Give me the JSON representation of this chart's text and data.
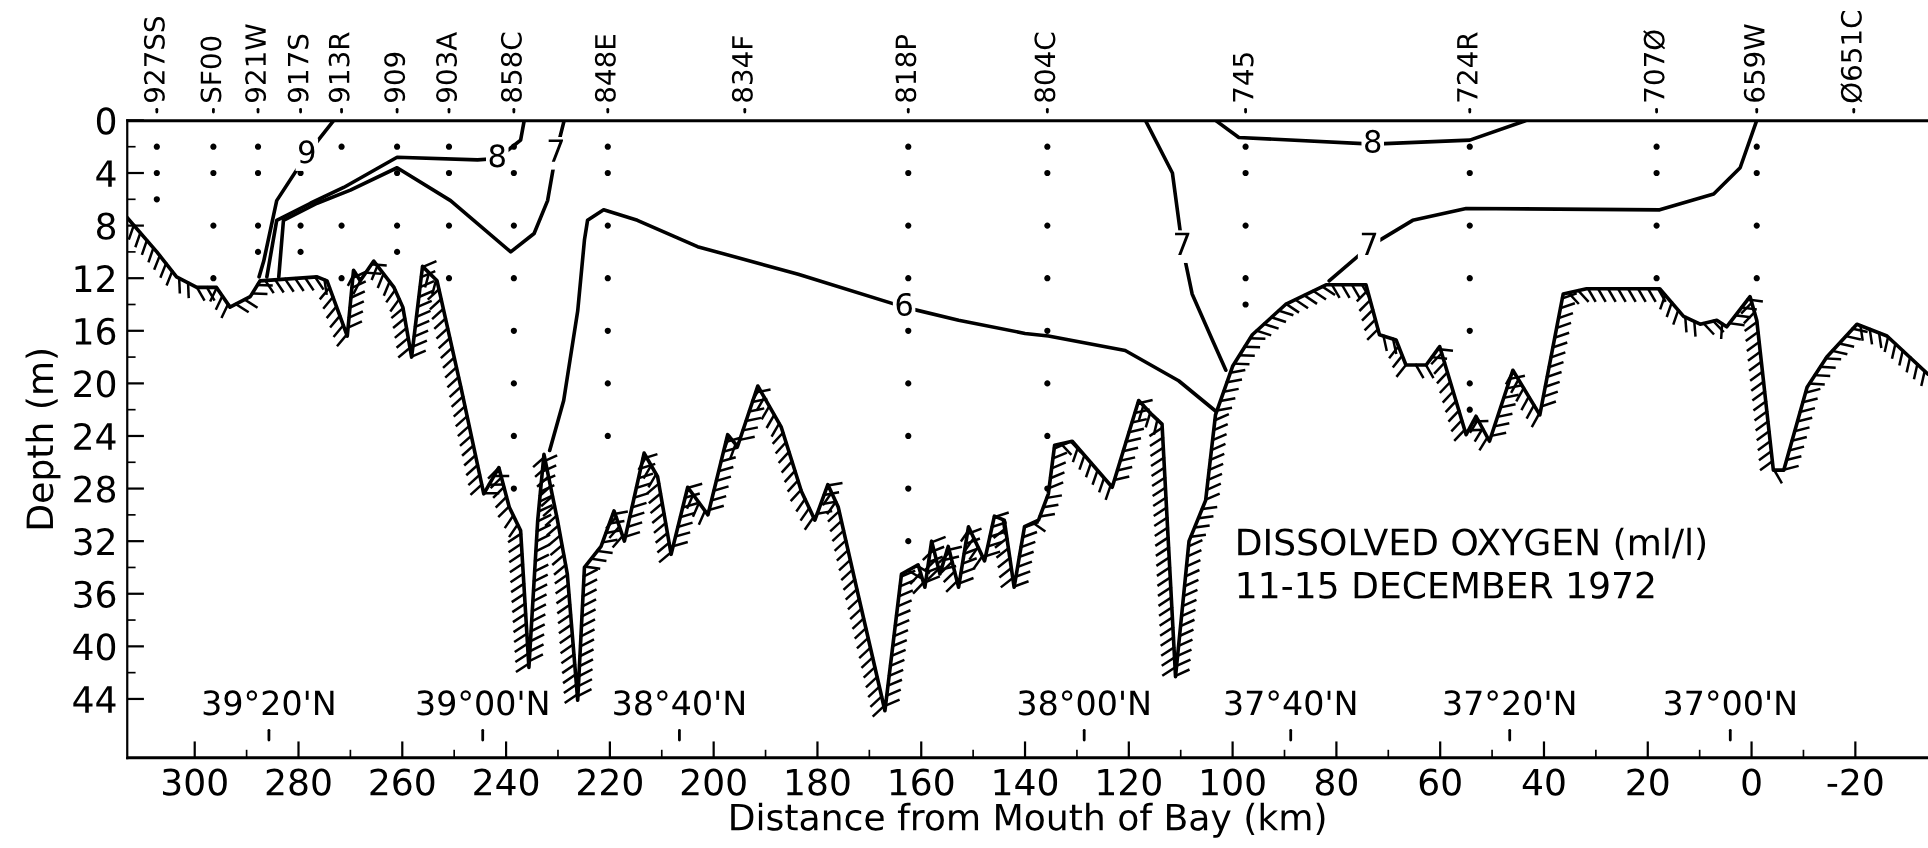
{
  "chart_data": {
    "type": "line",
    "xlabel": "Distance from Mouth of Bay (km)",
    "ylabel": "Depth (m)",
    "xlim": [
      313,
      -34
    ],
    "ylim": [
      48.5,
      0
    ],
    "xticks": [
      300,
      280,
      260,
      240,
      220,
      200,
      180,
      160,
      140,
      120,
      100,
      80,
      60,
      40,
      20,
      0,
      {
        "value": -20,
        "label": "-20"
      }
    ],
    "yticks": [
      0,
      4,
      8,
      12,
      16,
      20,
      24,
      28,
      32,
      36,
      40,
      44
    ],
    "ref_lines": [
      {
        "axis": "y",
        "value": 0,
        "color": "#000000"
      },
      {
        "axis": "y",
        "value": 48.5,
        "color": "#000000"
      }
    ],
    "series": [
      {
        "color": "#000000",
        "x": [
          313,
          307.3,
          303.5,
          299.6,
          295.8,
          293.2,
          289.3,
          287.4,
          276.4,
          274.5,
          270.6,
          269.4,
          268.1,
          265.5,
          261.6,
          259.9,
          258.2,
          256.1,
          253.3,
          248.7,
          244.3,
          241.4,
          239.4,
          237.2,
          235.6,
          233.9,
          232.7,
          230.1,
          228.2,
          226.2,
          224.9,
          221.7,
          219.2,
          217.2,
          213.4,
          210.8,
          208.2,
          205,
          201.1,
          197.3,
          195.4,
          191.5,
          187,
          183.1,
          180.5,
          178,
          176,
          172.2,
          167,
          163.8,
          160.6,
          159.3,
          158,
          156.4,
          154.8,
          152.8,
          150.9,
          147.8,
          145.9,
          144,
          142.1,
          140.1,
          137.4,
          135.5,
          134.3,
          130.9,
          123.2,
          118.1,
          115.5,
          113.6,
          111,
          108.4,
          105.2,
          103.3,
          100,
          96.2,
          89.8,
          82,
          74.3,
          71.7,
          68.5,
          66.6,
          62.7,
          60.1,
          55,
          53.1,
          50.5,
          46,
          40.8,
          36.3,
          31.8,
          17.7,
          13.1,
          9.9,
          6.7,
          4.8,
          0.3,
          -1,
          -4.2,
          -6.2,
          -10.7,
          -14.5,
          -20.3,
          -26.1,
          -34
        ],
        "values": [
          7.4,
          10,
          11.9,
          12.7,
          12.7,
          14.2,
          13.4,
          12.2,
          11.9,
          12.2,
          16.4,
          11.4,
          12.2,
          10.7,
          12.7,
          14.2,
          18,
          11.1,
          12.2,
          20.3,
          28.4,
          26.4,
          29.4,
          31.2,
          41.6,
          30.4,
          25.4,
          30.4,
          34.5,
          44.1,
          34,
          32.4,
          29.7,
          32,
          25.3,
          27.1,
          33,
          27.9,
          30,
          23.9,
          24.8,
          20.2,
          23.3,
          28.2,
          30.4,
          27.7,
          29.4,
          36,
          44.9,
          34.5,
          33.8,
          35.5,
          32,
          34.5,
          32.4,
          35.5,
          30.9,
          33.5,
          30.1,
          30.4,
          35.5,
          30.9,
          30.4,
          28.4,
          24.7,
          24.4,
          27.9,
          21.3,
          22.4,
          23.1,
          42.3,
          32,
          28.9,
          22.4,
          18.7,
          16.3,
          14,
          12.5,
          12.5,
          16.3,
          16.7,
          18.6,
          18.6,
          17.2,
          23.9,
          22.5,
          24.4,
          19,
          22.4,
          13.2,
          12.8,
          12.8,
          14.9,
          15.5,
          15.2,
          15.7,
          13.4,
          15.2,
          26.6,
          26.6,
          20.3,
          18,
          15.5,
          16.4,
          19.3
        ]
      },
      {
        "color": "#000000",
        "x": [
          273.2,
          278.4,
          284.2,
          286.7,
          287.6
        ],
        "values": [
          0,
          2.6,
          6.1,
          10.7,
          11.9
        ]
      },
      {
        "color": "#000000",
        "x": [
          286.1,
          284.2,
          277.7,
          271.3,
          261,
          245.5,
          241.7,
          237.2,
          236.5
        ],
        "values": [
          11.9,
          7.6,
          6.3,
          5.1,
          2.8,
          3,
          2.9,
          1.5,
          0
        ]
      },
      {
        "color": "#000000",
        "x": [
          283.8,
          282.9,
          276.4,
          270,
          261,
          250.7,
          239.1,
          234.6,
          232,
          230.4,
          228.8
        ],
        "values": [
          11.9,
          7.6,
          6.3,
          5.3,
          3.6,
          6.1,
          10,
          8.6,
          6.1,
          2.5,
          0
        ]
      },
      {
        "color": "#000000",
        "x": [
          231.6,
          228.9,
          226.2,
          224.9,
          224.3,
          221.2,
          214.7,
          203.1,
          183.7,
          163.3,
          152.8,
          140,
          135.5,
          120.7,
          110.4,
          103.3
        ],
        "values": [
          25.1,
          21.3,
          14.5,
          9.1,
          7.6,
          6.8,
          7.6,
          9.6,
          11.7,
          14.2,
          15.2,
          16.2,
          16.4,
          17.5,
          19.8,
          22.1
        ]
      },
      {
        "color": "#000000",
        "x": [
          116.8,
          111.6,
          109.7,
          107.8,
          103.9,
          101.3
        ],
        "values": [
          0,
          4,
          9.6,
          13.2,
          16.7,
          19
        ]
      },
      {
        "color": "#000000",
        "x": [
          103.3,
          98.8,
          73,
          54.3,
          43.4
        ],
        "values": [
          0,
          1.3,
          1.8,
          1.5,
          0
        ]
      },
      {
        "color": "#000000",
        "x": [
          81.4,
          73.7,
          65.3,
          55,
          17.7,
          7.3,
          2.2,
          -1
        ],
        "values": [
          12.2,
          9.6,
          7.6,
          6.7,
          6.8,
          5.6,
          3.6,
          0
        ]
      },
      {
        "type": "scatter",
        "color": "#000000",
        "marker": "circle",
        "x": [
          307.3,
          307.3,
          307.3,
          296.4,
          296.4,
          296.4,
          296.4,
          287.8,
          287.8,
          287.8,
          287.8,
          279.6,
          279.6,
          279.6,
          271.7,
          271.7,
          271.7,
          261,
          261,
          261,
          261,
          251,
          251,
          251,
          251,
          238.5,
          238.5,
          238.5,
          238.5,
          238.5,
          238.5,
          238.5,
          238.5,
          220.4,
          220.4,
          220.4,
          220.4,
          220.4,
          220.4,
          220.4,
          162.5,
          162.5,
          162.5,
          162.5,
          162.5,
          162.5,
          162.5,
          162.5,
          162.5,
          135.7,
          135.7,
          135.7,
          135.7,
          135.7,
          135.7,
          135.7,
          135.7,
          97.5,
          97.5,
          97.5,
          97.5,
          97.5,
          54.3,
          54.3,
          54.3,
          54.3,
          54.3,
          54.3,
          54.3,
          18.3,
          18.3,
          18.3,
          18.3,
          -1,
          -1,
          -1,
          -1
        ],
        "values": [
          2,
          4,
          6,
          2,
          4,
          8,
          12,
          2,
          4,
          8,
          10,
          4,
          8,
          10,
          2,
          8,
          12,
          2,
          4,
          8,
          10,
          2,
          4,
          8,
          12,
          2,
          4,
          8,
          12,
          16,
          20,
          24,
          28,
          2,
          4,
          8,
          12,
          16,
          20,
          24,
          2,
          4,
          8,
          12,
          16,
          20,
          24,
          28,
          32,
          2,
          4,
          8,
          12,
          16,
          20,
          24,
          28,
          2,
          4,
          8,
          12,
          14,
          2,
          4,
          8,
          12,
          16,
          20,
          22,
          2,
          4,
          8,
          12,
          2,
          4,
          8,
          12
        ]
      }
    ],
    "annotations": [
      {
        "text": "9",
        "x": 278.4,
        "y": 2.6
      },
      {
        "text": "8",
        "x": 241.7,
        "y": 2.9
      },
      {
        "text": "7",
        "x": 230.4,
        "y": 2.5
      },
      {
        "text": "6",
        "x": 163.3,
        "y": 14.2
      },
      {
        "text": "7",
        "x": 109.7,
        "y": 9.6
      },
      {
        "text": "8",
        "x": 73,
        "y": 1.8
      },
      {
        "text": "7",
        "x": 73.7,
        "y": 9.6
      },
      {
        "text": "927SS",
        "x": 307.3,
        "y": 0
      },
      {
        "text": "SF00",
        "x": 296.4,
        "y": 0
      },
      {
        "text": "921W",
        "x": 287.8,
        "y": 0
      },
      {
        "text": "917S",
        "x": 279.6,
        "y": 0
      },
      {
        "text": "913R",
        "x": 271.7,
        "y": 0
      },
      {
        "text": "909",
        "x": 261,
        "y": 0
      },
      {
        "text": "903A",
        "x": 251,
        "y": 0
      },
      {
        "text": "858C",
        "x": 238.5,
        "y": 0
      },
      {
        "text": "848E",
        "x": 220.4,
        "y": 0
      },
      {
        "text": "834F",
        "x": 194,
        "y": 0
      },
      {
        "text": "818P",
        "x": 162.5,
        "y": 0
      },
      {
        "text": "804C",
        "x": 135.7,
        "y": 0
      },
      {
        "text": "745",
        "x": 97.5,
        "y": 0
      },
      {
        "text": "724R",
        "x": 54.3,
        "y": 0
      },
      {
        "text": "707Ø",
        "x": 18.3,
        "y": 0
      },
      {
        "text": "659W",
        "x": -1,
        "y": 0
      },
      {
        "text": "Ø651C",
        "x": -19.7,
        "y": 0
      },
      {
        "text": "39°20'N",
        "x": 285.7,
        "y": 48.5
      },
      {
        "text": "39°00'N",
        "x": 244.5,
        "y": 48.5
      },
      {
        "text": "38°40'N",
        "x": 206.6,
        "y": 48.5
      },
      {
        "text": "38°00'N",
        "x": 128.6,
        "y": 48.5
      },
      {
        "text": "37°40'N",
        "x": 88.8,
        "y": 48.5
      },
      {
        "text": "37°20'N",
        "x": 46.6,
        "y": 48.5
      },
      {
        "text": "37°00'N",
        "x": 4.1,
        "y": 48.5
      },
      "DISSOLVED OXYGEN (ml/l)\n11-15 DECEMBER 1972"
    ]
  }
}
